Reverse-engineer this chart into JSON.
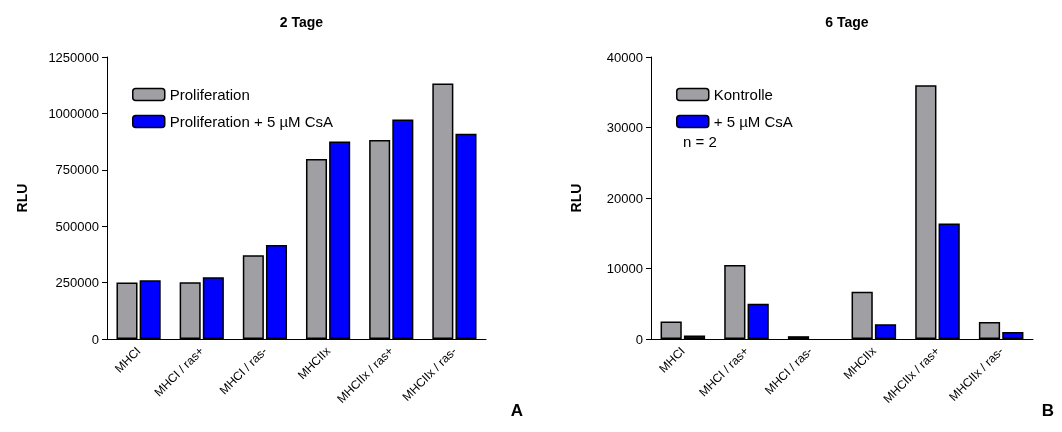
{
  "chart_data": [
    {
      "type": "bar",
      "title": "2 Tage",
      "ylabel": "RLU",
      "categories": [
        "MHCI",
        "MHCI / ras+",
        "MHCI / ras-",
        "MHCIIx",
        "MHCIIx / ras+",
        "MHCIIx / ras-"
      ],
      "series": [
        {
          "name": "Proliferation",
          "color": "#a0a0a4",
          "values": [
            250000,
            252000,
            371000,
            798000,
            882000,
            1133000
          ]
        },
        {
          "name": "Proliferation + 5 µM CsA",
          "color": "#0000ff",
          "values": [
            260000,
            274000,
            417000,
            875000,
            973000,
            910000
          ]
        }
      ],
      "ylim": [
        0,
        1250000
      ],
      "yticks": [
        0,
        250000,
        500000,
        750000,
        1000000,
        1250000
      ],
      "grid": false,
      "legend": "top left",
      "annotations": [
        "A"
      ]
    },
    {
      "type": "bar",
      "title": "6 Tage",
      "ylabel": "RLU",
      "categories": [
        "MHCI",
        "MHCI / ras+",
        "MHCI / ras-",
        "MHCIIx",
        "MHCIIx / ras+",
        "MHCIIx / ras-"
      ],
      "series": [
        {
          "name": "Kontrolle",
          "color": "#a0a0a4",
          "values": [
            2500,
            10500,
            400,
            6700,
            36000,
            2400
          ]
        },
        {
          "name": "+ 5 µM CsA",
          "color": "#0000ff",
          "values": [
            500,
            5000,
            null,
            2100,
            16400,
            1000
          ]
        }
      ],
      "ylim": [
        0,
        40000
      ],
      "yticks": [
        0,
        10000,
        20000,
        30000,
        40000
      ],
      "grid": false,
      "legend": "top left",
      "annotations": [
        "n = 2",
        "B"
      ]
    }
  ]
}
